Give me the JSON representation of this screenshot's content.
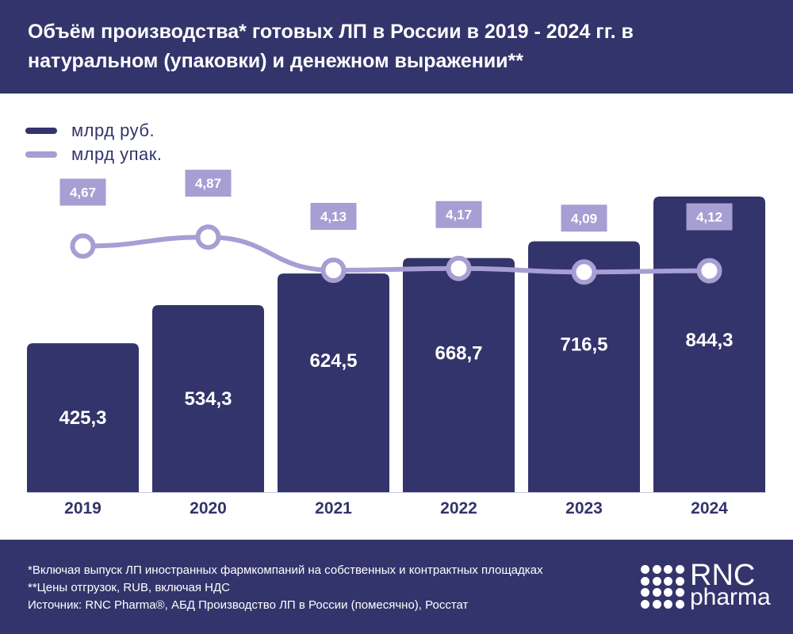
{
  "header": {
    "title": "Объём производства* готовых ЛП в России в 2019 - 2024 гг. в натуральном (упаковки) и денежном выражении**"
  },
  "legend": [
    {
      "label": "млрд руб.",
      "color": "#33346b"
    },
    {
      "label": "млрд упак.",
      "color": "#a79ed3"
    }
  ],
  "chart_data": {
    "type": "bar",
    "title": "Объём производства* готовых ЛП в России в 2019 - 2024 гг. в натуральном (упаковки) и денежном выражении**",
    "categories": [
      "2019",
      "2020",
      "2021",
      "2022",
      "2023",
      "2024"
    ],
    "series": [
      {
        "name": "млрд руб.",
        "type": "bar",
        "values": [
          425.3,
          534.3,
          624.5,
          668.7,
          716.5,
          844.3
        ],
        "labels": [
          "425,3",
          "534,3",
          "624,5",
          "668,7",
          "716,5",
          "844,3"
        ],
        "color": "#33346b"
      },
      {
        "name": "млрд упак.",
        "type": "line",
        "values": [
          4.67,
          4.87,
          4.13,
          4.17,
          4.09,
          4.12
        ],
        "labels": [
          "4,67",
          "4,87",
          "4,13",
          "4,17",
          "4,09",
          "4,12"
        ],
        "color": "#a79ed3"
      }
    ],
    "grid": false,
    "legend_position": "top-left"
  },
  "footer": {
    "notes": [
      "*Включая выпуск ЛП иностранных фармкомпаний на собственных и контрактных площадках",
      "**Цены отгрузок, RUB, включая НДС",
      "Источник: RNC Pharma®, АБД Производство ЛП в России (помесячно), Росстат"
    ],
    "logo_main": "RNC",
    "logo_sub": "pharma"
  }
}
